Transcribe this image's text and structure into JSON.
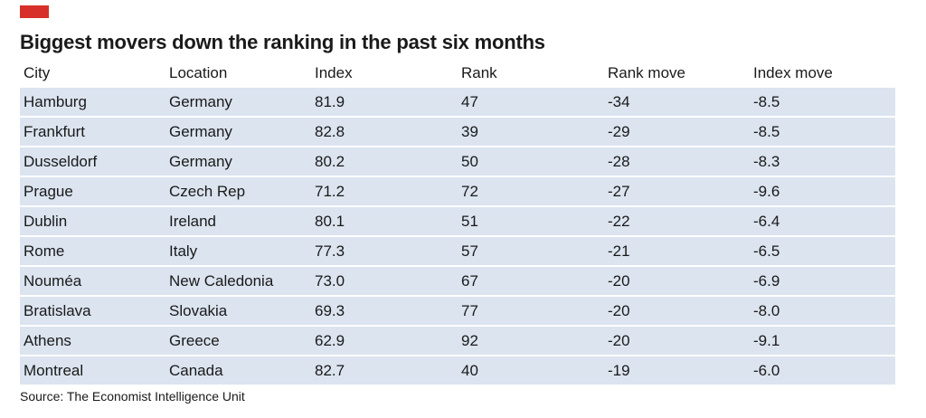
{
  "colors": {
    "accent": "#d7302a",
    "row_background": "#dbe4ef"
  },
  "chart_data": {
    "type": "table",
    "title": "Biggest movers down the ranking in the past six months",
    "columns": [
      "City",
      "Location",
      "Index",
      "Rank",
      "Rank move",
      "Index move"
    ],
    "rows": [
      [
        "Hamburg",
        "Germany",
        "81.9",
        "47",
        "-34",
        "-8.5"
      ],
      [
        "Frankfurt",
        "Germany",
        "82.8",
        "39",
        "-29",
        "-8.5"
      ],
      [
        "Dusseldorf",
        "Germany",
        "80.2",
        "50",
        "-28",
        "-8.3"
      ],
      [
        "Prague",
        "Czech Rep",
        "71.2",
        "72",
        "-27",
        "-9.6"
      ],
      [
        "Dublin",
        "Ireland",
        "80.1",
        "51",
        "-22",
        "-6.4"
      ],
      [
        "Rome",
        "Italy",
        "77.3",
        "57",
        "-21",
        "-6.5"
      ],
      [
        "Nouméa",
        "New Caledonia",
        "73.0",
        "67",
        "-20",
        "-6.9"
      ],
      [
        "Bratislava",
        "Slovakia",
        "69.3",
        "77",
        "-20",
        "-8.0"
      ],
      [
        "Athens",
        "Greece",
        "62.9",
        "92",
        "-20",
        "-9.1"
      ],
      [
        "Montreal",
        "Canada",
        "82.7",
        "40",
        "-19",
        "-6.0"
      ]
    ],
    "source": "Source: The Economist Intelligence Unit"
  }
}
